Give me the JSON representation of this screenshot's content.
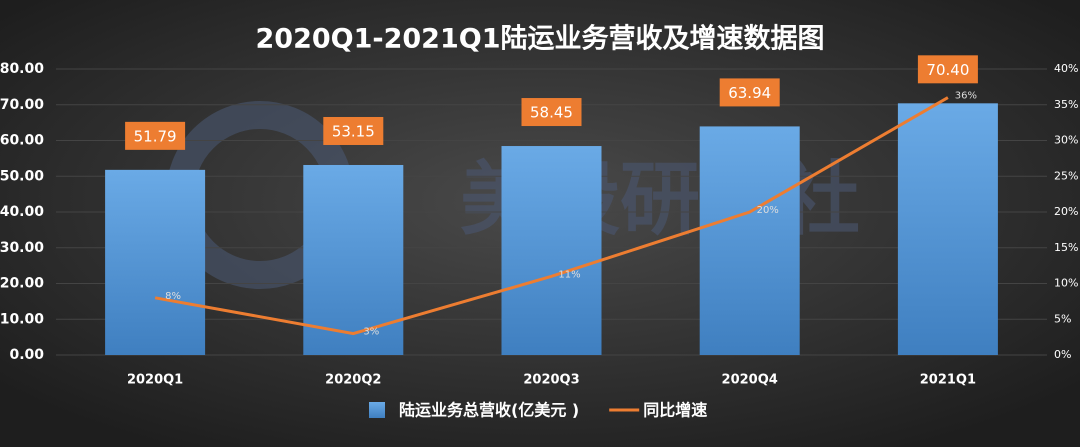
{
  "chart_data": {
    "type": "bar",
    "title": "2020Q1-2021Q1陆运业务营收及增速数据图",
    "watermark": "美股研究社",
    "categories": [
      "2020Q1",
      "2020Q2",
      "2020Q3",
      "2020Q4",
      "2021Q1"
    ],
    "series": [
      {
        "name": "陆运业务总营收(亿美元 )",
        "type": "bar",
        "color": "#5b9bd5",
        "values": [
          51.79,
          53.15,
          58.45,
          63.94,
          70.4
        ],
        "value_labels": [
          "51.79",
          "53.15",
          "58.45",
          "63.94",
          "70.40"
        ]
      },
      {
        "name": "同比增速",
        "type": "line",
        "axis": "y2",
        "color": "#ed7d31",
        "values": [
          8,
          3,
          11,
          20,
          36
        ],
        "value_labels": [
          "8%",
          "3%",
          "11%",
          "20%",
          "36%"
        ]
      }
    ],
    "ylim": [
      0,
      80
    ],
    "yticks": [
      {
        "value": 0,
        "label": "0.00"
      },
      {
        "value": 10,
        "label": "10.00"
      },
      {
        "value": 20,
        "label": "20.00"
      },
      {
        "value": 30,
        "label": "30.00"
      },
      {
        "value": 40,
        "label": "40.00"
      },
      {
        "value": 50,
        "label": "50.00"
      },
      {
        "value": 60,
        "label": "60.00"
      },
      {
        "value": 70,
        "label": "70.00"
      },
      {
        "value": 80,
        "label": "80.00"
      }
    ],
    "y2lim": [
      0,
      40
    ],
    "y2ticks": [
      {
        "value": 0,
        "label": "0%"
      },
      {
        "value": 5,
        "label": "5%"
      },
      {
        "value": 10,
        "label": "10%"
      },
      {
        "value": 15,
        "label": "15%"
      },
      {
        "value": 20,
        "label": "20%"
      },
      {
        "value": 25,
        "label": "25%"
      },
      {
        "value": 30,
        "label": "30%"
      },
      {
        "value": 35,
        "label": "35%"
      },
      {
        "value": 40,
        "label": "40%"
      }
    ],
    "grid": true,
    "legend": "bottom"
  }
}
